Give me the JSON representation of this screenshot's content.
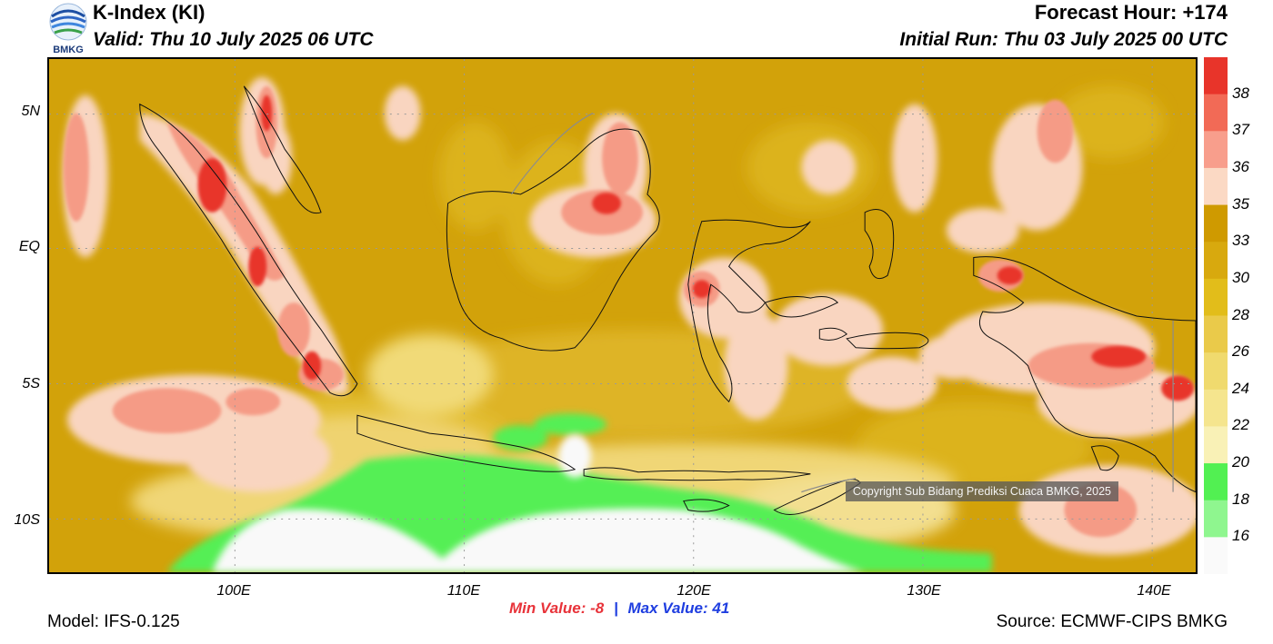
{
  "header": {
    "title": "K-Index (KI)",
    "valid": "Valid: Thu 10 July 2025 06 UTC",
    "forecast_hour": "Forecast Hour: +174",
    "initial_run": "Initial Run: Thu 03 July 2025 00 UTC"
  },
  "logo": {
    "text": "BMKG"
  },
  "axes": {
    "lat_labels": [
      "5N",
      "EQ",
      "5S",
      "10S"
    ],
    "lon_labels": [
      "100E",
      "110E",
      "120E",
      "130E",
      "140E"
    ]
  },
  "colorbar": {
    "labels": [
      "38",
      "37",
      "36",
      "35",
      "33",
      "30",
      "28",
      "26",
      "24",
      "22",
      "20",
      "18",
      "16"
    ],
    "colors": [
      "#e8342a",
      "#f26a56",
      "#f89e8c",
      "#fbd9c4",
      "#cf9a00",
      "#d8a90e",
      "#e2bd1a",
      "#eaca4a",
      "#f0da6e",
      "#f5e58e",
      "#f9f1b6",
      "#52f052",
      "#8ff68f",
      "#fafafa"
    ]
  },
  "footer": {
    "min_label": "Min Value:",
    "min_value": "-8",
    "separator": "|",
    "max_label": "Max Value:",
    "max_value": "41",
    "model": "Model: IFS-0.125",
    "source": "Source: ECMWF-CIPS BMKG",
    "copyright": "Copyright Sub Bidang Prediksi Cuaca BMKG, 2025"
  }
}
